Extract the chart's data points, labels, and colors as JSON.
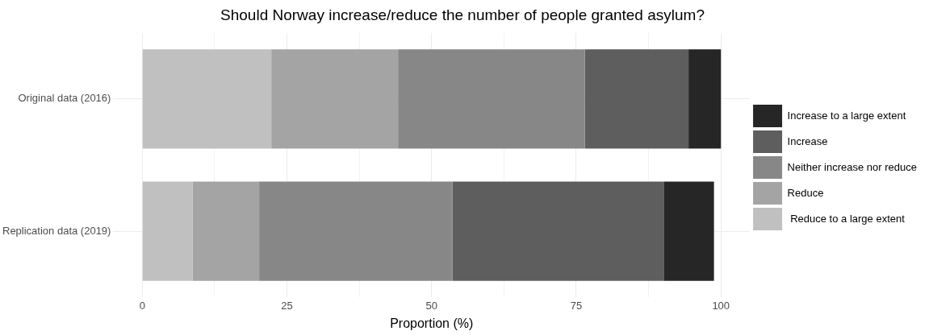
{
  "chart_data": {
    "type": "bar",
    "orientation": "horizontal",
    "stacked": true,
    "title": "Should Norway increase/reduce the number of people granted asylum?",
    "xlabel": "Proportion (%)",
    "categories": [
      "Original data (2016)",
      "Replication data (2019)"
    ],
    "series": [
      {
        "name": " Reduce to a large extent",
        "color": "#c0c0c0",
        "values": [
          22.3,
          8.7
        ]
      },
      {
        "name": "Reduce",
        "color": "#a4a4a4",
        "values": [
          21.9,
          11.5
        ]
      },
      {
        "name": "Neither increase nor reduce",
        "color": "#878787",
        "values": [
          32.3,
          33.4
        ]
      },
      {
        "name": "Increase",
        "color": "#5e5e5e",
        "values": [
          17.9,
          36.6
        ]
      },
      {
        "name": "Increase to a large extent",
        "color": "#262626",
        "values": [
          5.6,
          8.6
        ]
      }
    ],
    "xlim": [
      -5,
      105
    ],
    "xticks": [
      0,
      {
        "value": 12.5,
        "label": null
      },
      25,
      {
        "value": 37.5,
        "label": null
      },
      50,
      {
        "value": 62.5,
        "label": null
      },
      75,
      {
        "value": 87.5,
        "label": null
      },
      100
    ],
    "grid": true,
    "legend": "right"
  }
}
